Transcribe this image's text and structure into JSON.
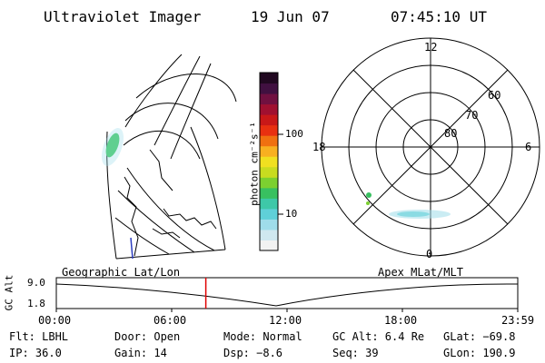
{
  "header": {
    "instrument": "Ultraviolet Imager",
    "date": "19 Jun 07",
    "time": "07:45:10 UT"
  },
  "colorbar": {
    "unit_label": "photon cm⁻²s⁻¹",
    "ticks": [
      "100",
      "10"
    ],
    "colors": [
      "#f2f2f2",
      "#cfe8f0",
      "#9fdcea",
      "#5fd0d8",
      "#3ec8a8",
      "#38c060",
      "#7cd030",
      "#c8dc20",
      "#f0e020",
      "#f8b020",
      "#f07010",
      "#e83010",
      "#c81818",
      "#a01030",
      "#701040",
      "#401040",
      "#200820"
    ]
  },
  "geo_panel": {
    "title": "Geographic Lat/Lon"
  },
  "polar_panel": {
    "title": "Apex MLat/MLT",
    "mlt_labels": [
      "12",
      "6",
      "0",
      "18"
    ],
    "lat_labels": [
      "60",
      "70",
      "80"
    ]
  },
  "timeline": {
    "y_label": "GC Alt",
    "y_ticks": [
      "9.0",
      "1.8"
    ],
    "x_ticks": [
      "00:00",
      "06:00",
      "12:00",
      "18:00",
      "23:59"
    ],
    "current_fraction_of_day": 0.324
  },
  "status": {
    "flt": "Flt: LBHL",
    "door": "Door: Open",
    "mode": "Mode: Normal",
    "gc_alt": "GC Alt: 6.4 Re",
    "glat": "GLat: −69.8",
    "ip": "IP: 36.0",
    "gain": "Gain: 14",
    "dsp": "Dsp:   −8.6",
    "seq": "Seq: 39",
    "glon": "GLon: 190.9"
  }
}
